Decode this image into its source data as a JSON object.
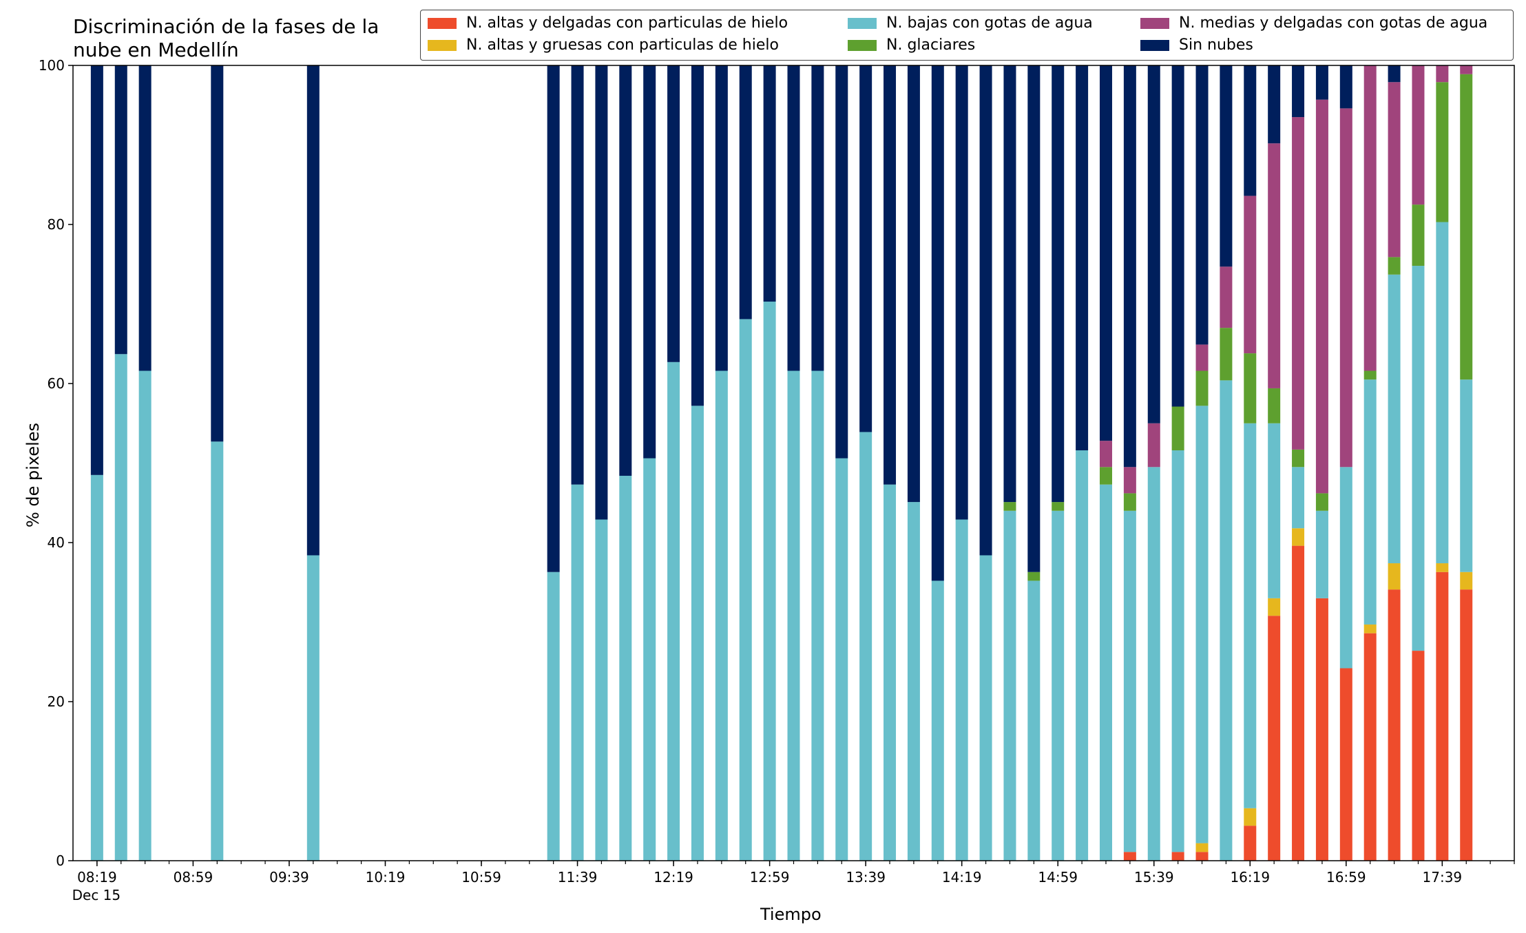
{
  "chart_data": {
    "type": "bar",
    "stacked": true,
    "title": "Discriminación de la fases de la\nnube en Medellín",
    "xlabel": "Tiempo",
    "ylabel": "% de pixeles",
    "ylim": [
      0,
      100
    ],
    "yticks": [
      0,
      20,
      40,
      60,
      80,
      100
    ],
    "xticks": [
      {
        "label": "08:19",
        "sub": "Dec 15",
        "time": "08:19"
      },
      {
        "label": "08:59",
        "sub": "",
        "time": "08:59"
      },
      {
        "label": "09:39",
        "sub": "",
        "time": "09:39"
      },
      {
        "label": "10:19",
        "sub": "",
        "time": "10:19"
      },
      {
        "label": "10:59",
        "sub": "",
        "time": "10:59"
      },
      {
        "label": "11:39",
        "sub": "",
        "time": "11:39"
      },
      {
        "label": "12:19",
        "sub": "",
        "time": "12:19"
      },
      {
        "label": "12:59",
        "sub": "",
        "time": "12:59"
      },
      {
        "label": "13:39",
        "sub": "",
        "time": "13:39"
      },
      {
        "label": "14:19",
        "sub": "",
        "time": "14:19"
      },
      {
        "label": "14:59",
        "sub": "",
        "time": "14:59"
      },
      {
        "label": "15:39",
        "sub": "",
        "time": "15:39"
      },
      {
        "label": "16:19",
        "sub": "",
        "time": "16:19"
      },
      {
        "label": "16:59",
        "sub": "",
        "time": "16:59"
      },
      {
        "label": "17:39",
        "sub": "",
        "time": "17:39"
      }
    ],
    "legend_placement": "top",
    "series": [
      {
        "name": "N. altas y delgadas con particulas de hielo",
        "color": "#ee4c2c"
      },
      {
        "name": "N. altas y gruesas con particulas de hielo",
        "color": "#e6b71e"
      },
      {
        "name": "N. bajas con gotas de agua",
        "color": "#68bfcb"
      },
      {
        "name": "N. glaciares",
        "color": "#5ea02f"
      },
      {
        "name": "N. medias y delgadas con gotas de agua",
        "color": "#a0447c"
      },
      {
        "name": "Sin nubes",
        "color": "#001f5c"
      }
    ],
    "stack_order": [
      "N. altas y delgadas con particulas de hielo",
      "N. altas y gruesas con particulas de hielo",
      "N. bajas con gotas de agua",
      "N. glaciares",
      "N. medias y delgadas con gotas de agua",
      "Sin nubes"
    ],
    "bars": [
      {
        "time": "08:19",
        "values": [
          0,
          0,
          48.5,
          0,
          0,
          51.5
        ]
      },
      {
        "time": "08:29",
        "values": [
          0,
          0,
          63.7,
          0,
          0,
          36.3
        ]
      },
      {
        "time": "08:39",
        "values": [
          0,
          0,
          61.6,
          0,
          0,
          38.4
        ]
      },
      {
        "time": "09:09",
        "values": [
          0,
          0,
          52.7,
          0,
          0,
          47.3
        ]
      },
      {
        "time": "09:49",
        "values": [
          0,
          0,
          38.4,
          0,
          0,
          61.6
        ]
      },
      {
        "time": "11:29",
        "values": [
          0,
          0,
          36.3,
          0,
          0,
          63.7
        ]
      },
      {
        "time": "11:39",
        "values": [
          0,
          0,
          47.3,
          0,
          0,
          52.7
        ]
      },
      {
        "time": "11:49",
        "values": [
          0,
          0,
          42.9,
          0,
          0,
          57.1
        ]
      },
      {
        "time": "11:59",
        "values": [
          0,
          0,
          48.4,
          0,
          0,
          51.6
        ]
      },
      {
        "time": "12:09",
        "values": [
          0,
          0,
          50.6,
          0,
          0,
          49.4
        ]
      },
      {
        "time": "12:19",
        "values": [
          0,
          0,
          62.7,
          0,
          0,
          37.3
        ]
      },
      {
        "time": "12:29",
        "values": [
          0,
          0,
          57.2,
          0,
          0,
          42.8
        ]
      },
      {
        "time": "12:39",
        "values": [
          0,
          0,
          61.6,
          0,
          0,
          38.4
        ]
      },
      {
        "time": "12:49",
        "values": [
          0,
          0,
          68.1,
          0,
          0,
          31.9
        ]
      },
      {
        "time": "12:59",
        "values": [
          0,
          0,
          70.3,
          0,
          0,
          29.7
        ]
      },
      {
        "time": "13:09",
        "values": [
          0,
          0,
          61.6,
          0,
          0,
          38.4
        ]
      },
      {
        "time": "13:19",
        "values": [
          0,
          0,
          61.6,
          0,
          0,
          38.4
        ]
      },
      {
        "time": "13:29",
        "values": [
          0,
          0,
          50.6,
          0,
          0,
          49.4
        ]
      },
      {
        "time": "13:39",
        "values": [
          0,
          0,
          53.9,
          0,
          0,
          46.1
        ]
      },
      {
        "time": "13:49",
        "values": [
          0,
          0,
          47.3,
          0,
          0,
          52.7
        ]
      },
      {
        "time": "13:59",
        "values": [
          0,
          0,
          45.1,
          0,
          0,
          54.9
        ]
      },
      {
        "time": "14:09",
        "values": [
          0,
          0,
          35.2,
          0,
          0,
          64.8
        ]
      },
      {
        "time": "14:19",
        "values": [
          0,
          0,
          42.9,
          0,
          0,
          57.1
        ]
      },
      {
        "time": "14:29",
        "values": [
          0,
          0,
          38.4,
          0,
          0,
          61.6
        ]
      },
      {
        "time": "14:39",
        "values": [
          0,
          0,
          44.0,
          1.1,
          0,
          54.9
        ]
      },
      {
        "time": "14:49",
        "values": [
          0,
          0,
          35.2,
          1.1,
          0,
          63.7
        ]
      },
      {
        "time": "14:59",
        "values": [
          0,
          0,
          44.0,
          1.1,
          0,
          54.9
        ]
      },
      {
        "time": "15:09",
        "values": [
          0,
          0,
          51.6,
          0,
          0,
          48.4
        ]
      },
      {
        "time": "15:19",
        "values": [
          0,
          0,
          47.3,
          2.2,
          3.3,
          47.2
        ]
      },
      {
        "time": "15:29",
        "values": [
          1.1,
          0,
          42.9,
          2.2,
          3.3,
          50.5
        ]
      },
      {
        "time": "15:39",
        "values": [
          0,
          0,
          49.5,
          0,
          5.5,
          45.0
        ]
      },
      {
        "time": "15:49",
        "values": [
          1.1,
          0,
          50.5,
          5.5,
          0,
          42.9
        ]
      },
      {
        "time": "15:59",
        "values": [
          1.1,
          1.1,
          55.0,
          4.4,
          3.3,
          35.1
        ]
      },
      {
        "time": "16:09",
        "values": [
          0,
          0,
          60.4,
          6.6,
          7.7,
          25.3
        ]
      },
      {
        "time": "16:19",
        "values": [
          4.4,
          2.2,
          48.4,
          8.8,
          19.8,
          16.4
        ]
      },
      {
        "time": "16:29",
        "values": [
          30.8,
          2.2,
          22.0,
          4.4,
          30.8,
          9.8
        ]
      },
      {
        "time": "16:39",
        "values": [
          39.6,
          2.2,
          7.7,
          2.2,
          41.8,
          6.5
        ]
      },
      {
        "time": "16:49",
        "values": [
          33.0,
          0,
          11.0,
          2.2,
          49.5,
          4.3
        ]
      },
      {
        "time": "16:59",
        "values": [
          24.2,
          0,
          25.3,
          0,
          45.1,
          5.4
        ]
      },
      {
        "time": "17:09",
        "values": [
          28.6,
          1.1,
          30.8,
          1.1,
          38.4,
          0
        ]
      },
      {
        "time": "17:19",
        "values": [
          34.1,
          3.3,
          36.3,
          2.2,
          22.0,
          2.1
        ]
      },
      {
        "time": "17:29",
        "values": [
          26.4,
          0,
          48.4,
          7.7,
          17.5,
          0
        ]
      },
      {
        "time": "17:39",
        "values": [
          36.3,
          1.1,
          42.9,
          17.6,
          2.1,
          0
        ]
      },
      {
        "time": "17:49",
        "values": [
          34.1,
          2.2,
          24.2,
          38.4,
          1.1,
          0
        ]
      }
    ]
  }
}
